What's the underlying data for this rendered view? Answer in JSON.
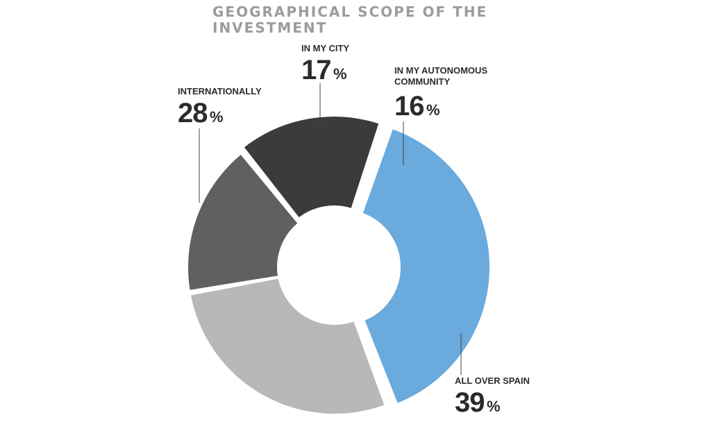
{
  "chart_data": {
    "type": "pie",
    "title": "GEOGRAPHICAL SCOPE OF THE INVESTMENT",
    "donut": true,
    "categories": [
      "IN MY CITY",
      "IN MY AUTONOMOUS COMMUNITY",
      "ALL OVER SPAIN",
      "INTERNATIONALLY"
    ],
    "values": [
      17,
      16,
      39,
      28
    ],
    "value_suffix": "%",
    "colors": [
      "#5f6062",
      "#3b3b3d",
      "#6aaadd",
      "#b8b8bb"
    ],
    "labels": [
      {
        "name_lines": [
          "IN MY CITY"
        ],
        "value": "17",
        "suffix": "%"
      },
      {
        "name_lines": [
          "IN MY AUTONOMOUS",
          "COMMUNITY"
        ],
        "value": "16",
        "suffix": "%"
      },
      {
        "name_lines": [
          "ALL OVER SPAIN"
        ],
        "value": "39",
        "suffix": "%"
      },
      {
        "name_lines": [
          "INTERNATIONALLY"
        ],
        "value": "28",
        "suffix": "%"
      }
    ]
  }
}
